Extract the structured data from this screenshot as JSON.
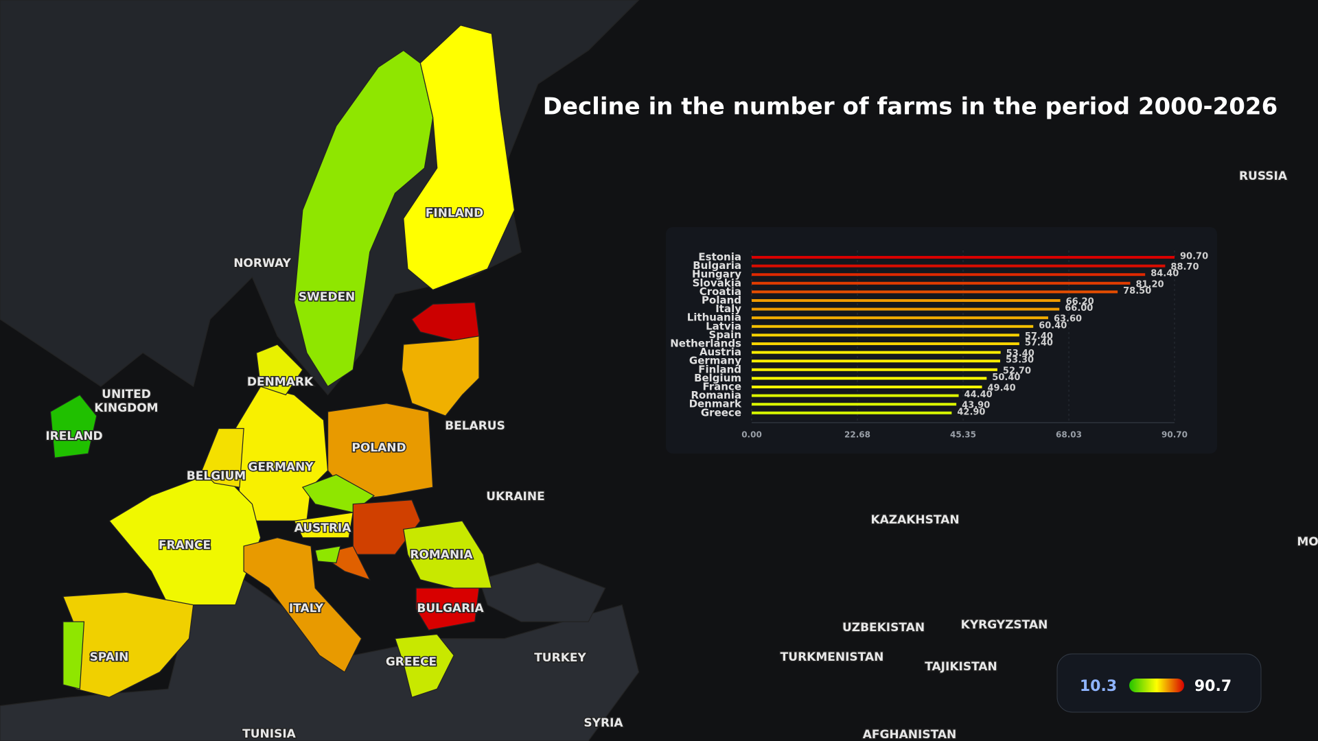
{
  "title": "Decline in the number of farms in the period 2000-2026",
  "map": {
    "labels": [
      "NORWAY",
      "SWEDEN",
      "FINLAND",
      "DENMARK",
      "UNITED",
      "KINGDOM",
      "IRELAND",
      "GERMANY",
      "BELGIUM",
      "POLAND",
      "BELARUS",
      "UKRAINE",
      "AUSTRIA",
      "FRANCE",
      "ROMANIA",
      "BULGARIA",
      "ITALY",
      "SPAIN",
      "GREECE",
      "TURKEY",
      "SYRIA",
      "TUNISIA",
      "KAZAKHSTAN",
      "UZBEKISTAN",
      "KYRGYZSTAN",
      "TURKMENISTAN",
      "TAJIKISTAN",
      "AFGHANISTAN",
      "RUSSIA",
      "MO"
    ]
  },
  "legend": {
    "min": 10.3,
    "max": 90.7,
    "colors": [
      "#22c400",
      "#ffff00",
      "#d80000"
    ]
  },
  "chart_data": {
    "type": "hbar",
    "categories": [
      "Estonia",
      "Bulgaria",
      "Hungary",
      "Slovakia",
      "Croatia",
      "Poland",
      "Italy",
      "Lithuania",
      "Latvia",
      "Spain",
      "Netherlands",
      "Austria",
      "Germany",
      "Finland",
      "Belgium",
      "France",
      "Romania",
      "Denmark",
      "Greece"
    ],
    "values": [
      90.7,
      88.7,
      84.4,
      81.2,
      78.5,
      66.2,
      66.0,
      63.6,
      60.4,
      57.4,
      57.4,
      53.4,
      53.3,
      52.7,
      50.4,
      49.4,
      44.4,
      43.9,
      42.9
    ],
    "value_labels": [
      "90.70",
      "88.70",
      "84.40",
      "81.20",
      "78.50",
      "66.20",
      "66.00",
      "63.60",
      "60.40",
      "57.40",
      "57.40",
      "53.40",
      "53.30",
      "52.70",
      "50.40",
      "49.40",
      "44.40",
      "43.90",
      "42.90"
    ],
    "xlim": [
      0,
      90.7
    ],
    "xticks": [
      {
        "value": 0,
        "label": "0.00"
      },
      {
        "value": 22.68,
        "label": "22.68"
      },
      {
        "value": 45.35,
        "label": "45.35"
      },
      {
        "value": 68.03,
        "label": "68.03"
      },
      {
        "value": 90.7,
        "label": "90.70"
      }
    ],
    "grid": true
  }
}
